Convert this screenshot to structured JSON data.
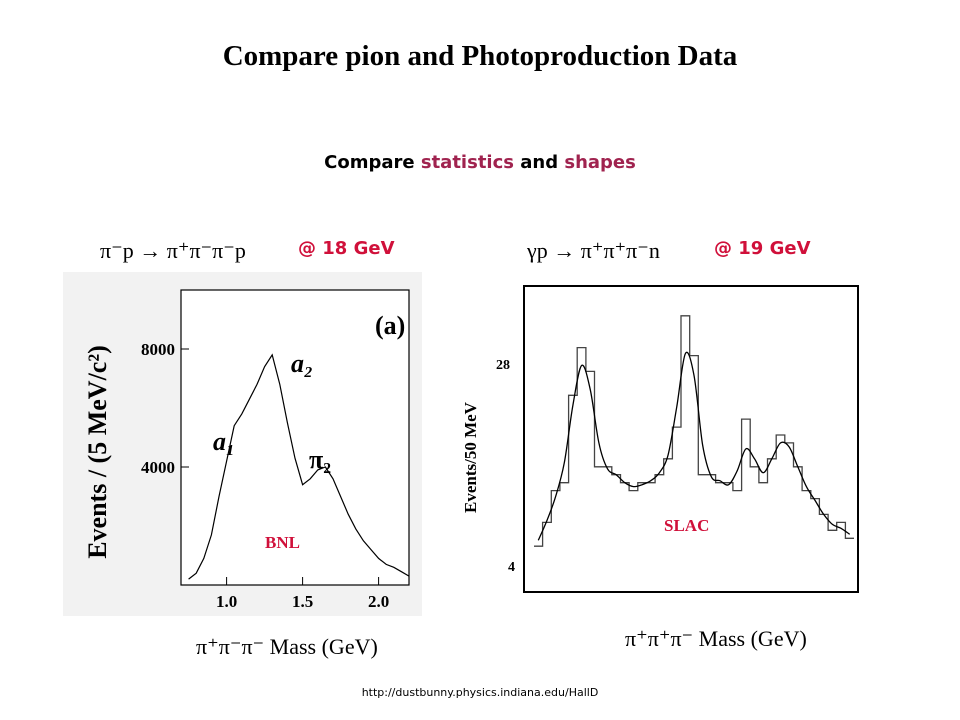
{
  "title": "Compare pion and Photoproduction Data",
  "subtitle": {
    "prefix": "Compare ",
    "word1": "statistics",
    "middle": " and ",
    "word2": "shapes"
  },
  "url": "http://dustbunny.physics.indiana.edu/HallD",
  "colors": {
    "accent": "#d0103a",
    "highlight": "#a0234f"
  },
  "chart_data": [
    {
      "type": "line",
      "reaction": "π⁻p → π⁺π⁻π⁻p",
      "energy": "@ 18 GeV",
      "panel_label": "(a)",
      "peak_labels": [
        "a₁",
        "a₂",
        "π₂"
      ],
      "experiment": "BNL",
      "ylabel": "Events / (5 MeV/c²)",
      "xlabel": "π⁺π⁻π⁻ Mass (GeV)",
      "xticks": [
        "1.0",
        "1.5",
        "2.0"
      ],
      "yticks": [
        "4000",
        "8000"
      ],
      "xlim": [
        0.7,
        2.2
      ],
      "ylim": [
        0,
        10000
      ],
      "x": [
        0.75,
        0.8,
        0.85,
        0.9,
        0.95,
        1.0,
        1.05,
        1.1,
        1.15,
        1.2,
        1.25,
        1.3,
        1.35,
        1.4,
        1.45,
        1.5,
        1.55,
        1.6,
        1.65,
        1.7,
        1.75,
        1.8,
        1.85,
        1.9,
        1.95,
        2.0,
        2.05,
        2.1,
        2.15,
        2.2
      ],
      "values": [
        200,
        400,
        900,
        1700,
        3000,
        4200,
        5400,
        5800,
        6300,
        6800,
        7400,
        7800,
        6800,
        5500,
        4300,
        3400,
        3600,
        3900,
        4000,
        3600,
        3000,
        2400,
        1900,
        1500,
        1200,
        900,
        700,
        600,
        450,
        300
      ]
    },
    {
      "type": "line",
      "reaction": "γp → π⁺π⁺π⁻n",
      "energy": "@ 19 GeV",
      "experiment": "SLAC",
      "ylabel": "Events/50 MeV",
      "xlabel": "π⁺π⁺π⁻ Mass (GeV)",
      "yticks": [
        "4",
        "28"
      ],
      "ylim": [
        0,
        36
      ],
      "x": [
        0,
        1,
        2,
        3,
        4,
        5,
        6,
        7,
        8,
        9,
        10,
        11,
        12,
        13,
        14,
        15,
        16,
        17,
        18,
        19,
        20,
        21,
        22,
        23,
        24,
        25,
        26,
        27,
        28,
        29,
        30,
        31,
        32,
        33,
        34,
        35,
        36
      ],
      "values": [
        4,
        7,
        11,
        12,
        23,
        29,
        26,
        14,
        14,
        13,
        12,
        11,
        12,
        12,
        13,
        15,
        19,
        33,
        28,
        13,
        13,
        12,
        12,
        11,
        20,
        14,
        12,
        15,
        18,
        17,
        14,
        11,
        10,
        8,
        6,
        7,
        5
      ]
    }
  ]
}
